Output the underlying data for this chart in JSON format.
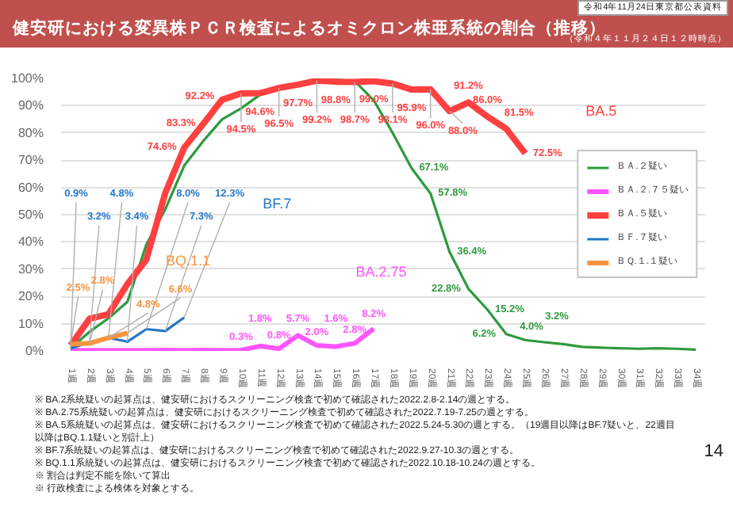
{
  "chart_data": {
    "type": "line",
    "title": "健安研における変異株ＰＣＲ検査によるオミクロン株亜系統の割合（推移）",
    "subtitle": "（令和４年１１月２４日１２時時点）",
    "categories": [
      "1週",
      "2週",
      "3週",
      "4週",
      "5週",
      "6週",
      "7週",
      "8週",
      "9週",
      "10週",
      "11週",
      "12週",
      "13週",
      "14週",
      "15週",
      "16週",
      "17週",
      "18週",
      "19週",
      "20週",
      "21週",
      "22週",
      "23週",
      "24週",
      "25週",
      "26週",
      "27週",
      "28週",
      "29週",
      "30週",
      "31週",
      "32週",
      "33週",
      "34週"
    ],
    "ylim": [
      0,
      100
    ],
    "yticks": [
      {
        "value": 0,
        "label": "0%"
      },
      {
        "value": 10,
        "label": "10%"
      },
      {
        "value": 20,
        "label": "20%"
      },
      {
        "value": 30,
        "label": "30%"
      },
      {
        "value": 40,
        "label": "40%"
      },
      {
        "value": 50,
        "label": "50%"
      },
      {
        "value": 60,
        "label": "60%"
      },
      {
        "value": 70,
        "label": "70%"
      },
      {
        "value": 80,
        "label": "80%"
      },
      {
        "value": 90,
        "label": "90%"
      },
      {
        "value": 100,
        "label": "100%"
      }
    ],
    "grid": "y",
    "legend": "right",
    "series": [
      {
        "name": "ＢＡ.２疑い",
        "color": "#2e9a3e",
        "values": [
          1,
          7,
          12,
          18,
          39,
          52,
          68,
          77,
          85,
          89,
          94,
          97,
          98,
          98.5,
          99.5,
          99,
          92,
          80,
          67.1,
          57.8,
          36.4,
          22.8,
          15.2,
          6.2,
          4.0,
          3.2,
          2.5,
          1.5,
          1.2,
          1.0,
          0.8,
          1.0,
          0.8,
          0.5
        ],
        "value_labels": [
          null,
          null,
          null,
          null,
          null,
          null,
          null,
          null,
          null,
          null,
          null,
          null,
          null,
          null,
          null,
          null,
          null,
          null,
          "67.1%",
          "57.8%",
          "36.4%",
          "22.8%",
          "15.2%",
          "6.2%",
          "4.0%",
          "3.2%",
          null,
          null,
          null,
          null,
          null,
          null,
          null,
          null
        ]
      },
      {
        "name": "ＢＡ.２.７５疑い",
        "color": "#ff55ff",
        "values": [
          0.2,
          0.2,
          0.2,
          0.2,
          0.2,
          0.3,
          0.2,
          0.3,
          0.2,
          0.3,
          1.8,
          0.8,
          5.7,
          2.0,
          1.6,
          2.8,
          8.2,
          null,
          null,
          null,
          null,
          null,
          null,
          null,
          null,
          null,
          null,
          null,
          null,
          null,
          null,
          null,
          null,
          null
        ],
        "value_labels": [
          null,
          null,
          null,
          null,
          null,
          null,
          null,
          null,
          null,
          "0.3%",
          "1.8%",
          "0.8%",
          "5.7%",
          "2.0%",
          "1.6%",
          "2.8%",
          "8.2%",
          null,
          null,
          null,
          null,
          null,
          null,
          null,
          null,
          null,
          null,
          null,
          null,
          null,
          null,
          null,
          null,
          null
        ]
      },
      {
        "name": "ＢＡ.５疑い",
        "color": "#ff4040",
        "values": [
          2,
          11.8,
          13.5,
          24.5,
          33.5,
          58,
          74.6,
          83.3,
          92.2,
          94.5,
          94.6,
          96.5,
          97.7,
          99.2,
          98.8,
          98.7,
          99.0,
          98.1,
          95.9,
          96.0,
          88.0,
          91.2,
          86.0,
          81.5,
          72.5,
          null,
          null,
          null,
          null,
          null,
          null,
          null,
          null,
          null
        ],
        "value_labels": [
          null,
          null,
          null,
          null,
          null,
          null,
          "74.6%",
          "83.3%",
          "92.2%",
          "94.5%",
          "94.6%",
          "96.5%",
          "97.7%",
          "99.2%",
          "98.8%",
          "98.7%",
          "99.0%",
          "98.1%",
          "95.9%",
          "96.0%",
          "88.0%",
          "91.2%",
          "86.0%",
          "81.5%",
          "72.5%",
          null,
          null,
          null,
          null,
          null,
          null,
          null,
          null,
          null
        ]
      },
      {
        "name": "ＢＦ.７疑い",
        "color": "#2478c8",
        "values": [
          0.9,
          3.2,
          4.8,
          3.4,
          8.0,
          7.3,
          12.3,
          null,
          null,
          null,
          null,
          null,
          null,
          null,
          null,
          null,
          null,
          null,
          null,
          null,
          null,
          null,
          null,
          null,
          null,
          null,
          null,
          null,
          null,
          null,
          null,
          null,
          null,
          null
        ],
        "value_labels": [
          "0.9%",
          "3.2%",
          "4.8%",
          "3.4%",
          "8.0%",
          "7.3%",
          "12.3%",
          null,
          null,
          null,
          null,
          null,
          null,
          null,
          null,
          null,
          null,
          null,
          null,
          null,
          null,
          null,
          null,
          null,
          null,
          null,
          null,
          null,
          null,
          null,
          null,
          null,
          null,
          null
        ]
      },
      {
        "name": "ＢＱ.１.１疑い",
        "color": "#f79440",
        "values": [
          2.5,
          2.8,
          4.8,
          6.6,
          null,
          null,
          null,
          null,
          null,
          null,
          null,
          null,
          null,
          null,
          null,
          null,
          null,
          null,
          null,
          null,
          null,
          null,
          null,
          null,
          null,
          null,
          null,
          null,
          null,
          null,
          null,
          null,
          null,
          null
        ],
        "value_labels": [
          "2.5%",
          "2.8%",
          "4.8%",
          "6.6%",
          null,
          null,
          null,
          null,
          null,
          null,
          null,
          null,
          null,
          null,
          null,
          null,
          null,
          null,
          null,
          null,
          null,
          null,
          null,
          null,
          null,
          null,
          null,
          null,
          null,
          null,
          null,
          null,
          null,
          null
        ]
      }
    ],
    "annotations": [
      "令和4年11月24日東京都公表資料",
      "BA.5",
      "BF.7",
      "BQ.1.1",
      "BA.2.75",
      "※ BA.2系統疑いの起算点は、健安研におけるスクリーニング検査で初めて確認された2022.2.8-2.14の週とする。",
      "※ BA.2.75系統疑いの起算点は、健安研におけるスクリーニング検査で初めて確認された2022.7.19-7.25の週とする。",
      "※ BA.5系統疑いの起算点は、健安研におけるスクリーニング検査で初めて確認された2022.5.24-5.30の週とする。（19週目以降はBF.7疑いと、22週目以降はBQ.1.1疑いと別計上）",
      "※ BF.7系統疑いの起算点は、健安研におけるスクリーニング検査で初めて確認された2022.9.27-10.3の週とする。",
      "※ BQ.1.1系統疑いの起算点は、健安研におけるスクリーニング検査で初めて確認された2022.10.18-10.24の週とする。",
      "※ 割合は判定不能を除いて算出",
      "※ 行政検査による検体を対象とする。",
      "14"
    ]
  }
}
